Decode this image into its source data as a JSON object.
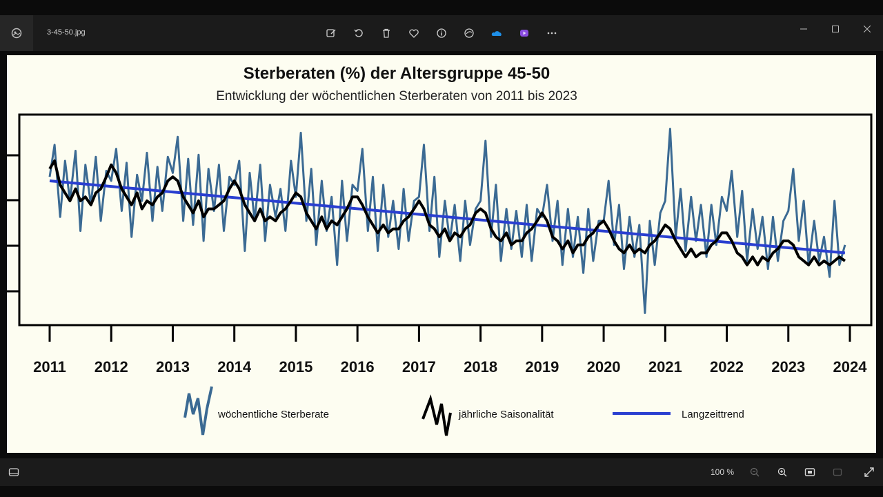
{
  "window": {
    "filename": "3-45-50.jpg"
  },
  "toolbar": {
    "tools": [
      "edit-icon",
      "rotate-icon",
      "delete-icon",
      "favorite-icon",
      "info-icon",
      "share-icon",
      "onedrive-icon",
      "clipchamp-icon",
      "more-icon"
    ]
  },
  "statusbar": {
    "zoom": "100 %"
  },
  "colors": {
    "weekly": "#3b6a93",
    "seasonal": "#000000",
    "trend": "#2a3fd0",
    "background": "#fdfdf1"
  },
  "chart_data": {
    "type": "line",
    "title": "Sterberaten (%) der Altersgruppe 45-50",
    "subtitle": "Entwicklung der wöchentlichen Sterberaten von 2011 bis 2023",
    "x_ticks": [
      "2011",
      "2012",
      "2013",
      "2014",
      "2015",
      "2016",
      "2017",
      "2018",
      "2019",
      "2020",
      "2021",
      "2022",
      "2023",
      "2024"
    ],
    "xlim": [
      2011,
      2024
    ],
    "ylim": [
      0,
      1
    ],
    "y_tick_labels_visible": false,
    "x": [
      2011.0,
      2011.08,
      2011.17,
      2011.25,
      2011.33,
      2011.42,
      2011.5,
      2011.58,
      2011.67,
      2011.75,
      2011.83,
      2011.92,
      2012.0,
      2012.08,
      2012.17,
      2012.25,
      2012.33,
      2012.42,
      2012.5,
      2012.58,
      2012.67,
      2012.75,
      2012.83,
      2012.92,
      2013.0,
      2013.08,
      2013.17,
      2013.25,
      2013.33,
      2013.42,
      2013.5,
      2013.58,
      2013.67,
      2013.75,
      2013.83,
      2013.92,
      2014.0,
      2014.08,
      2014.17,
      2014.25,
      2014.33,
      2014.42,
      2014.5,
      2014.58,
      2014.67,
      2014.75,
      2014.83,
      2014.92,
      2015.0,
      2015.08,
      2015.17,
      2015.25,
      2015.33,
      2015.42,
      2015.5,
      2015.58,
      2015.67,
      2015.75,
      2015.83,
      2015.92,
      2016.0,
      2016.08,
      2016.17,
      2016.25,
      2016.33,
      2016.42,
      2016.5,
      2016.58,
      2016.67,
      2016.75,
      2016.83,
      2016.92,
      2017.0,
      2017.08,
      2017.17,
      2017.25,
      2017.33,
      2017.42,
      2017.5,
      2017.58,
      2017.67,
      2017.75,
      2017.83,
      2017.92,
      2018.0,
      2018.08,
      2018.17,
      2018.25,
      2018.33,
      2018.42,
      2018.5,
      2018.58,
      2018.67,
      2018.75,
      2018.83,
      2018.92,
      2019.0,
      2019.08,
      2019.17,
      2019.25,
      2019.33,
      2019.42,
      2019.5,
      2019.58,
      2019.67,
      2019.75,
      2019.83,
      2019.92,
      2020.0,
      2020.08,
      2020.17,
      2020.25,
      2020.33,
      2020.42,
      2020.5,
      2020.58,
      2020.67,
      2020.75,
      2020.83,
      2020.92,
      2021.0,
      2021.08,
      2021.17,
      2021.25,
      2021.33,
      2021.42,
      2021.5,
      2021.58,
      2021.67,
      2021.75,
      2021.83,
      2021.92,
      2022.0,
      2022.08,
      2022.17,
      2022.25,
      2022.33,
      2022.42,
      2022.5,
      2022.58,
      2022.67,
      2022.75,
      2022.83,
      2022.92,
      2023.0,
      2023.08,
      2023.17,
      2023.25,
      2023.33,
      2023.42,
      2023.5,
      2023.58,
      2023.67,
      2023.75,
      2023.83,
      2023.92
    ],
    "series": [
      {
        "name": "wöchentliche Sterberate",
        "values": [
          0.72,
          0.88,
          0.52,
          0.8,
          0.6,
          0.85,
          0.45,
          0.78,
          0.58,
          0.82,
          0.5,
          0.75,
          0.7,
          0.86,
          0.55,
          0.79,
          0.42,
          0.73,
          0.6,
          0.84,
          0.5,
          0.77,
          0.55,
          0.82,
          0.74,
          0.92,
          0.5,
          0.81,
          0.48,
          0.83,
          0.4,
          0.76,
          0.55,
          0.78,
          0.45,
          0.72,
          0.68,
          0.8,
          0.35,
          0.74,
          0.5,
          0.78,
          0.4,
          0.68,
          0.52,
          0.66,
          0.45,
          0.8,
          0.62,
          0.94,
          0.5,
          0.76,
          0.38,
          0.7,
          0.45,
          0.62,
          0.28,
          0.7,
          0.4,
          0.68,
          0.65,
          0.86,
          0.45,
          0.72,
          0.35,
          0.68,
          0.42,
          0.6,
          0.36,
          0.66,
          0.4,
          0.6,
          0.62,
          0.88,
          0.45,
          0.72,
          0.32,
          0.6,
          0.4,
          0.58,
          0.3,
          0.6,
          0.38,
          0.56,
          0.6,
          0.9,
          0.42,
          0.68,
          0.3,
          0.56,
          0.36,
          0.55,
          0.32,
          0.58,
          0.3,
          0.56,
          0.52,
          0.68,
          0.4,
          0.6,
          0.28,
          0.56,
          0.32,
          0.52,
          0.24,
          0.56,
          0.3,
          0.5,
          0.5,
          0.7,
          0.38,
          0.58,
          0.26,
          0.52,
          0.32,
          0.48,
          0.04,
          0.5,
          0.28,
          0.54,
          0.6,
          0.96,
          0.42,
          0.66,
          0.35,
          0.62,
          0.4,
          0.58,
          0.32,
          0.58,
          0.38,
          0.62,
          0.55,
          0.75,
          0.42,
          0.65,
          0.3,
          0.56,
          0.36,
          0.52,
          0.26,
          0.52,
          0.3,
          0.5,
          0.55,
          0.76,
          0.4,
          0.6,
          0.28,
          0.5,
          0.3,
          0.42,
          0.22,
          0.6,
          0.28,
          0.38
        ]
      },
      {
        "name": "jährliche Saisonalität",
        "values": [
          0.76,
          0.8,
          0.68,
          0.64,
          0.6,
          0.66,
          0.6,
          0.62,
          0.58,
          0.64,
          0.66,
          0.72,
          0.78,
          0.74,
          0.66,
          0.62,
          0.58,
          0.64,
          0.56,
          0.6,
          0.58,
          0.62,
          0.64,
          0.7,
          0.72,
          0.7,
          0.62,
          0.58,
          0.54,
          0.6,
          0.52,
          0.56,
          0.56,
          0.58,
          0.6,
          0.66,
          0.7,
          0.66,
          0.58,
          0.54,
          0.5,
          0.56,
          0.5,
          0.52,
          0.5,
          0.54,
          0.56,
          0.6,
          0.64,
          0.62,
          0.54,
          0.5,
          0.46,
          0.52,
          0.46,
          0.5,
          0.48,
          0.52,
          0.56,
          0.62,
          0.62,
          0.58,
          0.52,
          0.48,
          0.44,
          0.48,
          0.44,
          0.46,
          0.46,
          0.5,
          0.52,
          0.56,
          0.6,
          0.56,
          0.48,
          0.46,
          0.42,
          0.46,
          0.4,
          0.44,
          0.42,
          0.46,
          0.48,
          0.54,
          0.56,
          0.54,
          0.46,
          0.42,
          0.4,
          0.44,
          0.38,
          0.4,
          0.4,
          0.44,
          0.46,
          0.5,
          0.54,
          0.5,
          0.42,
          0.4,
          0.36,
          0.4,
          0.34,
          0.38,
          0.38,
          0.42,
          0.44,
          0.48,
          0.5,
          0.46,
          0.4,
          0.36,
          0.34,
          0.38,
          0.34,
          0.36,
          0.34,
          0.38,
          0.4,
          0.44,
          0.48,
          0.46,
          0.4,
          0.36,
          0.32,
          0.36,
          0.32,
          0.34,
          0.34,
          0.38,
          0.4,
          0.44,
          0.44,
          0.4,
          0.34,
          0.32,
          0.28,
          0.32,
          0.28,
          0.32,
          0.3,
          0.34,
          0.36,
          0.4,
          0.4,
          0.38,
          0.32,
          0.3,
          0.28,
          0.32,
          0.28,
          0.3,
          0.28,
          0.3,
          0.32,
          0.3
        ]
      },
      {
        "name": "Langzeittrend",
        "trend_line": {
          "x": [
            2011.0,
            2023.92
          ],
          "values": [
            0.7,
            0.34
          ]
        }
      }
    ],
    "legend_position": "bottom-center"
  }
}
